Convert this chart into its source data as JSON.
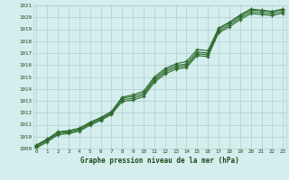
{
  "x": [
    0,
    1,
    2,
    3,
    4,
    5,
    6,
    7,
    8,
    9,
    10,
    11,
    12,
    13,
    14,
    15,
    16,
    17,
    18,
    19,
    20,
    21,
    22,
    23
  ],
  "line1": [
    1009.3,
    1009.8,
    1010.4,
    1010.5,
    1010.7,
    1011.2,
    1011.6,
    1012.1,
    1013.3,
    1013.5,
    1013.8,
    1015.0,
    1015.7,
    1016.1,
    1016.3,
    1017.3,
    1017.2,
    1019.1,
    1019.6,
    1020.2,
    1020.7,
    1020.6,
    1020.5,
    1020.7
  ],
  "line2": [
    1009.25,
    1009.75,
    1010.35,
    1010.45,
    1010.65,
    1011.15,
    1011.55,
    1012.05,
    1013.25,
    1013.35,
    1013.65,
    1014.85,
    1015.55,
    1015.95,
    1016.1,
    1017.1,
    1017.0,
    1019.0,
    1019.5,
    1020.1,
    1020.6,
    1020.55,
    1020.45,
    1020.65
  ],
  "line3": [
    1009.15,
    1009.65,
    1010.25,
    1010.35,
    1010.55,
    1011.05,
    1011.45,
    1011.95,
    1013.1,
    1013.2,
    1013.5,
    1014.7,
    1015.4,
    1015.8,
    1015.95,
    1016.95,
    1016.85,
    1018.85,
    1019.35,
    1019.95,
    1020.45,
    1020.4,
    1020.3,
    1020.5
  ],
  "line4": [
    1009.05,
    1009.55,
    1010.15,
    1010.25,
    1010.45,
    1010.95,
    1011.35,
    1011.85,
    1012.95,
    1013.05,
    1013.35,
    1014.55,
    1015.25,
    1015.65,
    1015.8,
    1016.8,
    1016.7,
    1018.7,
    1019.2,
    1019.8,
    1020.3,
    1020.25,
    1020.15,
    1020.35
  ],
  "ylim": [
    1009,
    1021
  ],
  "yticks": [
    1009,
    1010,
    1011,
    1012,
    1013,
    1014,
    1015,
    1016,
    1017,
    1018,
    1019,
    1020,
    1021
  ],
  "xticks": [
    0,
    1,
    2,
    3,
    4,
    5,
    6,
    7,
    8,
    9,
    10,
    11,
    12,
    13,
    14,
    15,
    16,
    17,
    18,
    19,
    20,
    21,
    22,
    23
  ],
  "line_color": "#2d6b2d",
  "bg_color": "#d4eeee",
  "grid_color": "#b0cccc",
  "xlabel": "Graphe pression niveau de la mer (hPa)",
  "label_color": "#1a4a1a",
  "marker": "+"
}
